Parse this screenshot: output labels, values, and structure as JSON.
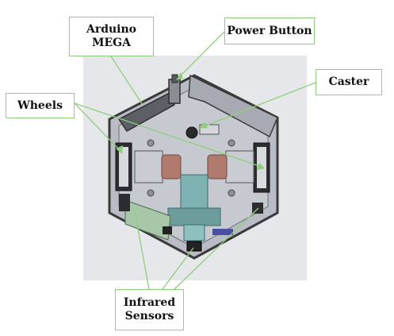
{
  "labels": {
    "arduino": "Arduino\nMEGA",
    "power_button": "Power Button",
    "wheels": "Wheels",
    "caster": "Caster",
    "infrared_sensors": "Infrared\nSensors"
  },
  "colors": {
    "callout_border": "#8fce7c",
    "leader_line": "#8fce7c",
    "render_background": "#e6e7ea",
    "chassis_plate": "#b9bcc4",
    "chassis_edge": "#3a3a3a",
    "motor": "#b07a6d",
    "center_column": "#7fb3b3",
    "sensor_board": "#a8c6a8"
  }
}
